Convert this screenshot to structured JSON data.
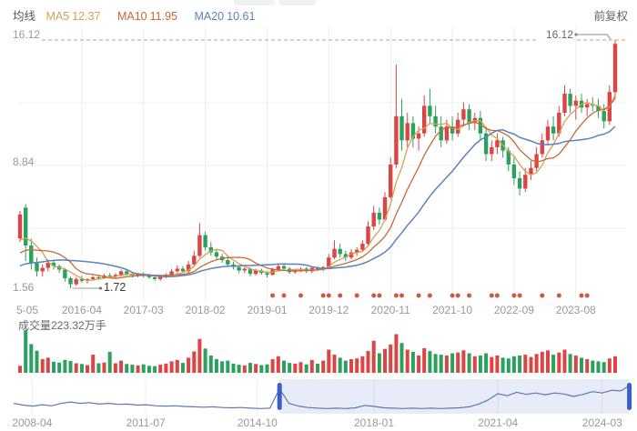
{
  "header": {
    "legend_label": "均线",
    "ma5_label": "MA5",
    "ma5_value": "12.37",
    "ma10_label": "MA10",
    "ma10_value": "11.95",
    "ma20_label": "MA20",
    "ma20_value": "10.61",
    "adjust_mode": "前复权"
  },
  "colors": {
    "up": "#dd4444",
    "down": "#2ca05f",
    "ma5": "#d7a051",
    "ma10": "#c76a32",
    "ma20": "#5b82c0",
    "dash_line": "#c9a063",
    "event_dot": "#cd5a3d",
    "grid": "#ededed",
    "axis_text": "#999999",
    "annotation_line": "#8a8a8a",
    "nav_line": "#6079ad",
    "nav_handle": "#3a5fc8",
    "nav_fill": "rgba(78,109,205,0.13)"
  },
  "chart_data": {
    "type": "candlestick",
    "title": "",
    "ylim": [
      1.56,
      16.12
    ],
    "y_axis_labels": {
      "top": "16.12",
      "mid": "8.84",
      "bottom": "1.56"
    },
    "x_ticks": [
      {
        "label": "5-05",
        "index": 0
      },
      {
        "label": "2016-04",
        "index": 11
      },
      {
        "label": "2017-03",
        "index": 22
      },
      {
        "label": "2018-02",
        "index": 33
      },
      {
        "label": "2019-01",
        "index": 44
      },
      {
        "label": "2019-12",
        "index": 55
      },
      {
        "label": "2020-11",
        "index": 66
      },
      {
        "label": "2021-10",
        "index": 77
      },
      {
        "label": "2022-09",
        "index": 88
      },
      {
        "label": "2023-08",
        "index": 99
      }
    ],
    "high_marker": {
      "label": "16.12",
      "value": 16.12
    },
    "low_marker": {
      "label": "1.72",
      "value": 1.72,
      "index": 9
    },
    "ma_periods": [
      5,
      10,
      20
    ],
    "ma_seed_closes": [
      2.0,
      2.0,
      2.1,
      2.1,
      2.2,
      2.2,
      2.3,
      2.3,
      2.4,
      2.5,
      2.6,
      2.7,
      2.8,
      3.0,
      3.2,
      3.4,
      3.7,
      4.0,
      4.3,
      4.6
    ],
    "candles": [
      [
        4.6,
        6.2,
        4.4,
        6.0
      ],
      [
        6.4,
        6.6,
        3.3,
        4.2
      ],
      [
        4.2,
        4.6,
        2.8,
        3.2
      ],
      [
        3.2,
        3.5,
        2.4,
        2.7
      ],
      [
        2.7,
        3.1,
        2.4,
        2.9
      ],
      [
        2.9,
        3.4,
        2.7,
        3.2
      ],
      [
        3.2,
        3.3,
        2.8,
        3.0
      ],
      [
        3.0,
        3.1,
        2.6,
        2.8
      ],
      [
        2.8,
        2.9,
        2.1,
        2.3
      ],
      [
        2.3,
        2.4,
        1.72,
        1.95
      ],
      [
        1.95,
        2.35,
        1.85,
        2.25
      ],
      [
        2.25,
        2.45,
        2.05,
        2.15
      ],
      [
        2.15,
        2.3,
        2.0,
        2.25
      ],
      [
        2.25,
        2.45,
        2.15,
        2.35
      ],
      [
        2.35,
        2.5,
        2.2,
        2.3
      ],
      [
        2.3,
        2.55,
        2.25,
        2.45
      ],
      [
        2.45,
        2.6,
        2.3,
        2.4
      ],
      [
        2.4,
        2.6,
        2.3,
        2.5
      ],
      [
        2.5,
        2.8,
        2.4,
        2.7
      ],
      [
        2.7,
        2.8,
        2.45,
        2.55
      ],
      [
        2.55,
        2.65,
        2.35,
        2.45
      ],
      [
        2.45,
        2.6,
        2.35,
        2.55
      ],
      [
        2.55,
        2.65,
        2.35,
        2.45
      ],
      [
        2.45,
        2.55,
        2.25,
        2.35
      ],
      [
        2.35,
        2.45,
        2.15,
        2.25
      ],
      [
        2.25,
        2.5,
        2.15,
        2.4
      ],
      [
        2.4,
        2.6,
        2.3,
        2.5
      ],
      [
        2.5,
        2.85,
        2.4,
        2.7
      ],
      [
        2.7,
        3.05,
        2.6,
        2.85
      ],
      [
        2.85,
        3.0,
        2.6,
        2.7
      ],
      [
        2.7,
        3.3,
        2.6,
        3.1
      ],
      [
        3.1,
        3.9,
        3.0,
        3.6
      ],
      [
        3.6,
        5.5,
        3.5,
        4.8
      ],
      [
        4.8,
        5.0,
        3.9,
        4.1
      ],
      [
        4.1,
        4.4,
        3.6,
        3.8
      ],
      [
        3.8,
        4.0,
        3.4,
        3.55
      ],
      [
        3.55,
        3.7,
        3.2,
        3.35
      ],
      [
        3.35,
        3.5,
        2.95,
        3.1
      ],
      [
        3.1,
        3.25,
        2.8,
        2.95
      ],
      [
        2.95,
        3.05,
        2.6,
        2.75
      ],
      [
        2.75,
        2.95,
        2.6,
        2.85
      ],
      [
        2.85,
        2.95,
        2.4,
        2.55
      ],
      [
        2.55,
        2.85,
        2.45,
        2.75
      ],
      [
        2.75,
        2.85,
        2.5,
        2.6
      ],
      [
        2.6,
        2.7,
        2.35,
        2.5
      ],
      [
        2.5,
        2.9,
        2.45,
        2.8
      ],
      [
        2.8,
        3.1,
        2.7,
        3.0
      ],
      [
        3.0,
        3.15,
        2.75,
        2.85
      ],
      [
        2.85,
        2.95,
        2.55,
        2.65
      ],
      [
        2.65,
        2.85,
        2.55,
        2.75
      ],
      [
        2.75,
        2.95,
        2.65,
        2.85
      ],
      [
        2.85,
        2.95,
        2.6,
        2.7
      ],
      [
        2.7,
        3.0,
        2.6,
        2.9
      ],
      [
        2.9,
        3.0,
        2.7,
        2.8
      ],
      [
        2.8,
        3.0,
        2.7,
        2.95
      ],
      [
        2.95,
        3.7,
        2.85,
        3.5
      ],
      [
        3.5,
        4.5,
        3.4,
        4.0
      ],
      [
        4.0,
        4.3,
        3.5,
        3.7
      ],
      [
        3.7,
        3.9,
        3.3,
        3.5
      ],
      [
        3.5,
        4.0,
        3.4,
        3.8
      ],
      [
        3.8,
        4.1,
        3.6,
        3.95
      ],
      [
        3.95,
        4.5,
        3.85,
        4.3
      ],
      [
        4.3,
        5.6,
        4.2,
        5.3
      ],
      [
        5.3,
        6.5,
        5.1,
        6.1
      ],
      [
        6.1,
        6.4,
        5.4,
        5.7
      ],
      [
        5.7,
        7.3,
        5.6,
        7.0
      ],
      [
        7.0,
        9.3,
        6.9,
        8.9
      ],
      [
        8.9,
        14.7,
        8.7,
        11.7
      ],
      [
        11.7,
        12.7,
        9.7,
        10.3
      ],
      [
        10.3,
        11.9,
        9.9,
        11.3
      ],
      [
        11.3,
        11.7,
        9.9,
        10.4
      ],
      [
        10.4,
        11.1,
        9.7,
        10.7
      ],
      [
        10.7,
        12.9,
        10.5,
        12.3
      ],
      [
        12.3,
        13.3,
        11.3,
        11.7
      ],
      [
        11.7,
        12.3,
        10.7,
        11.1
      ],
      [
        11.1,
        11.7,
        9.9,
        10.3
      ],
      [
        10.3,
        11.5,
        10.1,
        11.1
      ],
      [
        11.1,
        11.7,
        10.3,
        10.7
      ],
      [
        10.7,
        11.9,
        10.5,
        11.5
      ],
      [
        11.5,
        12.5,
        11.1,
        12.1
      ],
      [
        12.1,
        12.4,
        10.9,
        11.3
      ],
      [
        11.3,
        11.9,
        10.9,
        11.6
      ],
      [
        11.6,
        12.0,
        10.3,
        10.7
      ],
      [
        10.7,
        11.1,
        9.1,
        9.5
      ],
      [
        9.5,
        10.3,
        9.1,
        9.9
      ],
      [
        9.9,
        10.7,
        9.5,
        10.3
      ],
      [
        10.3,
        10.5,
        9.3,
        9.7
      ],
      [
        9.7,
        9.9,
        8.5,
        8.9
      ],
      [
        8.9,
        9.3,
        7.7,
        8.1
      ],
      [
        8.1,
        8.5,
        7.1,
        7.5
      ],
      [
        7.5,
        8.7,
        7.3,
        8.3
      ],
      [
        8.3,
        9.1,
        8.0,
        8.7
      ],
      [
        8.7,
        9.9,
        8.5,
        9.5
      ],
      [
        9.5,
        10.7,
        9.3,
        10.3
      ],
      [
        10.3,
        11.5,
        10.0,
        11.1
      ],
      [
        11.1,
        11.7,
        10.3,
        10.7
      ],
      [
        10.7,
        12.3,
        10.5,
        11.9
      ],
      [
        11.9,
        13.5,
        11.7,
        13.0
      ],
      [
        13.0,
        13.3,
        11.9,
        12.3
      ],
      [
        12.3,
        12.9,
        11.5,
        12.6
      ],
      [
        12.6,
        13.0,
        11.9,
        12.2
      ],
      [
        12.2,
        12.7,
        11.7,
        12.4
      ],
      [
        12.4,
        12.8,
        12.0,
        12.3
      ],
      [
        12.3,
        12.7,
        11.6,
        12.0
      ],
      [
        12.0,
        12.4,
        11.0,
        11.4
      ],
      [
        11.4,
        13.5,
        11.2,
        13.1
      ],
      [
        13.1,
        16.12,
        12.7,
        15.9
      ]
    ],
    "event_marker_indices": [
      45,
      47,
      50,
      54,
      55,
      57,
      60,
      63,
      64,
      67,
      68,
      71,
      73,
      77,
      78,
      80,
      84,
      85,
      88,
      89,
      93,
      96,
      100,
      101
    ],
    "volume": {
      "label": "成交量223.32万手",
      "values": [
        95,
        580,
        390,
        300,
        185,
        205,
        150,
        140,
        175,
        160,
        130,
        120,
        105,
        245,
        130,
        140,
        285,
        130,
        165,
        120,
        110,
        100,
        115,
        95,
        90,
        110,
        125,
        155,
        175,
        135,
        205,
        290,
        460,
        330,
        235,
        185,
        155,
        165,
        125,
        110,
        100,
        135,
        120,
        105,
        115,
        185,
        225,
        165,
        135,
        125,
        145,
        115,
        175,
        125,
        165,
        315,
        245,
        205,
        165,
        185,
        195,
        225,
        295,
        435,
        265,
        325,
        385,
        525,
        405,
        315,
        285,
        235,
        335,
        295,
        255,
        245,
        235,
        265,
        275,
        305,
        265,
        225,
        235,
        265,
        215,
        235,
        205,
        195,
        225,
        235,
        245,
        215,
        255,
        285,
        305,
        245,
        275,
        315,
        255,
        235,
        205,
        185,
        165,
        155,
        145,
        195,
        223.32
      ]
    },
    "navigator": {
      "points": [
        0.3,
        0.25,
        0.22,
        0.26,
        0.23,
        0.3,
        0.34,
        0.3,
        0.32,
        0.28,
        0.3,
        0.27,
        0.28,
        0.25,
        0.26,
        0.23,
        0.22,
        0.23,
        0.21,
        0.2,
        0.19,
        0.2,
        0.18,
        0.17,
        0.18,
        0.16,
        0.15,
        0.16,
        0.72,
        0.3,
        0.22,
        0.18,
        0.16,
        0.15,
        0.16,
        0.15,
        0.17,
        0.24,
        0.21,
        0.17,
        0.16,
        0.15,
        0.16,
        0.15,
        0.16,
        0.15,
        0.16,
        0.17,
        0.2,
        0.28,
        0.4,
        0.58,
        0.52,
        0.62,
        0.56,
        0.6,
        0.55,
        0.6,
        0.57,
        0.5,
        0.56,
        0.64,
        0.6,
        0.68,
        0.66,
        0.85
      ],
      "selection": [
        0.431,
        0.998
      ],
      "ticks": [
        {
          "label": "2008-04",
          "fx": 0.03
        },
        {
          "label": "2011-07",
          "fx": 0.214
        },
        {
          "label": "2014-10",
          "fx": 0.395
        },
        {
          "label": "2018-01",
          "fx": 0.584
        },
        {
          "label": "2021-04",
          "fx": 0.785
        },
        {
          "label": "2024-03",
          "fx": 0.954
        }
      ]
    }
  }
}
